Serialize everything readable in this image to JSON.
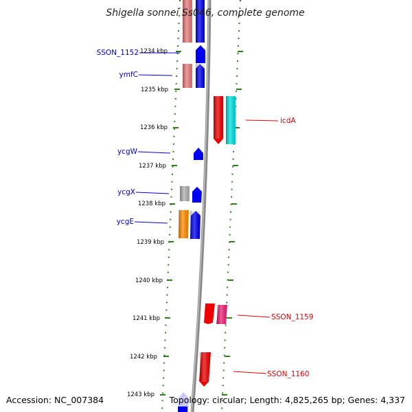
{
  "title": "Shigella sonnei Ss046, complete genome",
  "footer": {
    "accession": "Accession: NC_007384",
    "summary": "Topology: circular; Length: 4,825,265 bp; Genes: 4,337"
  },
  "colors": {
    "ruler": "#2e7d1a",
    "backbone": "#8a8a8a",
    "label_left": "#0000cc",
    "label_right": "#dd0000"
  },
  "kbp_labels": [
    "1234 kbp",
    "1235 kbp",
    "1236 kbp",
    "1237 kbp",
    "1238 kbp",
    "1239 kbp",
    "1240 kbp",
    "1241 kbp",
    "1242 kbp",
    "1243 kbp"
  ],
  "gene_labels_left": [
    "SSON_1152",
    "ymfC",
    "ycgW",
    "ycgX",
    "ycgE"
  ],
  "gene_labels_right": [
    "icdA",
    "SSON_1159",
    "SSON_1160"
  ],
  "features": [
    {
      "name": "feature-pink-1",
      "color": "#e77b7b"
    },
    {
      "name": "feature-blue-1",
      "color": "#0000ee"
    },
    {
      "name": "feature-blue-2",
      "color": "#0000ee"
    },
    {
      "name": "feature-pink-2",
      "color": "#e77b7b"
    },
    {
      "name": "feature-blue-3",
      "color": "#0000ee"
    },
    {
      "name": "feature-red-icdA",
      "color": "#ee0000"
    },
    {
      "name": "feature-cyan-icdA",
      "color": "#00e0e0"
    },
    {
      "name": "feature-blue-4",
      "color": "#0000ee"
    },
    {
      "name": "feature-grey-1",
      "color": "#b0b0b0"
    },
    {
      "name": "feature-blue-5",
      "color": "#0000ee"
    },
    {
      "name": "feature-orange-1",
      "color": "#ff8c00"
    },
    {
      "name": "feature-blue-6",
      "color": "#0000ee"
    },
    {
      "name": "feature-red-1159",
      "color": "#ee0000"
    },
    {
      "name": "feature-magenta-1159",
      "color": "#ee2277"
    },
    {
      "name": "feature-red-1160",
      "color": "#ee0000"
    },
    {
      "name": "feature-lavender-bottom",
      "color": "#c8c8f4"
    },
    {
      "name": "feature-blue-bottom",
      "color": "#0000ee"
    }
  ]
}
